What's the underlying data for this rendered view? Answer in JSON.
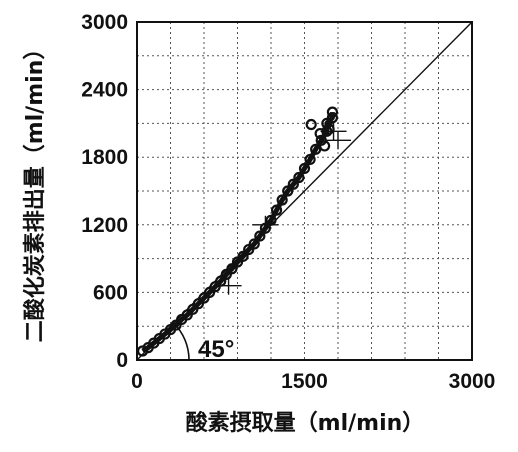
{
  "chart_data": {
    "type": "scatter",
    "title": "",
    "xlabel": "酸素摂取量（ml/min）",
    "ylabel": "二酸化炭素排出量（ml/min）",
    "xlim": [
      0,
      3000
    ],
    "ylim": [
      0,
      3000
    ],
    "x_ticks": [
      "0",
      "1500",
      "3000"
    ],
    "y_ticks": [
      "0",
      "600",
      "1200",
      "1800",
      "2400",
      "3000"
    ],
    "grid": true,
    "reference_line": {
      "label": "45°",
      "from": [
        0,
        0
      ],
      "to": [
        3000,
        3000
      ]
    },
    "series": [
      {
        "values": [
          [
            50,
            80
          ],
          [
            100,
            110
          ],
          [
            150,
            150
          ],
          [
            200,
            190
          ],
          [
            250,
            230
          ],
          [
            300,
            270
          ],
          [
            350,
            310
          ],
          [
            400,
            360
          ],
          [
            450,
            400
          ],
          [
            500,
            450
          ],
          [
            550,
            500
          ],
          [
            600,
            550
          ],
          [
            650,
            600
          ],
          [
            700,
            650
          ],
          [
            750,
            700
          ],
          [
            800,
            760
          ],
          [
            850,
            810
          ],
          [
            900,
            870
          ],
          [
            950,
            920
          ],
          [
            1000,
            980
          ],
          [
            1050,
            1030
          ],
          [
            1100,
            1100
          ],
          [
            1150,
            1170
          ],
          [
            1200,
            1240
          ],
          [
            1250,
            1330
          ],
          [
            1300,
            1420
          ],
          [
            1350,
            1500
          ],
          [
            1400,
            1560
          ],
          [
            1450,
            1620
          ],
          [
            1500,
            1700
          ],
          [
            1550,
            1780
          ],
          [
            1600,
            1870
          ],
          [
            1650,
            1950
          ],
          [
            1700,
            2030
          ],
          [
            1700,
            2100
          ],
          [
            1750,
            2150
          ],
          [
            1750,
            2200
          ],
          [
            1680,
            1900
          ],
          [
            1720,
            2050
          ],
          [
            1640,
            2010
          ],
          [
            1560,
            2090
          ]
        ]
      }
    ],
    "crosses": [
      [
        820,
        660
      ],
      [
        1150,
        1200
      ],
      [
        1800,
        1950
      ],
      [
        1760,
        2030
      ]
    ]
  }
}
